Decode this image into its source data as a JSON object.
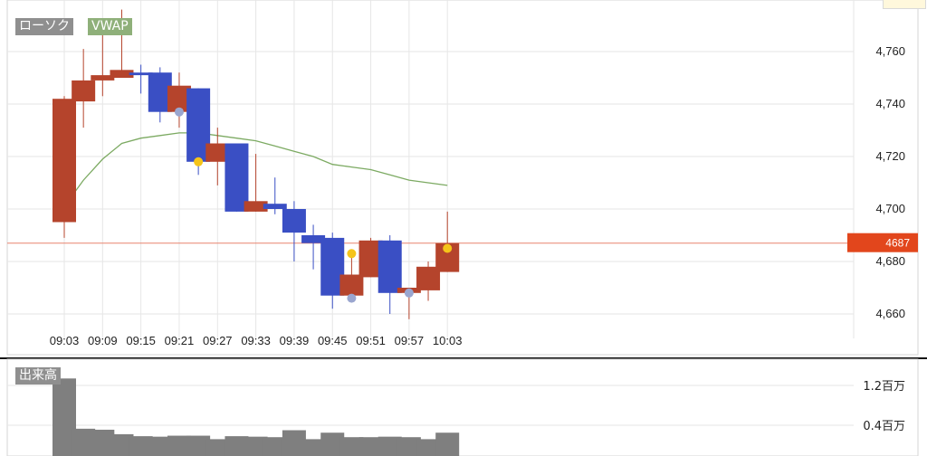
{
  "legend": {
    "candle_label": "ローソク",
    "vwap_label": "VWAP"
  },
  "volume_panel": {
    "label": "出来高",
    "ticks": [
      "1.2百万",
      "0.4百万"
    ]
  },
  "price_label": "4687",
  "colors": {
    "up": "#b5442c",
    "down": "#3a4fc4",
    "vwap": "#7caa62",
    "price_line": "#e8836f",
    "price_label_bg": "#e2461c",
    "volume": "#7f7f7f",
    "marker_yellow": "#f5c41a",
    "marker_gray": "#9aa6cf",
    "legend_bg": "#8f8f8f",
    "vwap_legend_bg": "#8fb07a"
  },
  "chart_data": [
    {
      "type": "candlestick",
      "x_tick_labels": [
        "09:03",
        "09:09",
        "09:15",
        "09:21",
        "09:27",
        "09:33",
        "09:39",
        "09:45",
        "09:51",
        "09:57",
        "10:03"
      ],
      "y_tick_labels": [
        "4,760",
        "4,740",
        "4,720",
        "4,700",
        "4,680",
        "4,660"
      ],
      "y_ticks": [
        4760,
        4740,
        4720,
        4700,
        4680,
        4660
      ],
      "ylim": [
        4656,
        4776
      ],
      "grid": true,
      "current_price": 4687,
      "candles": [
        {
          "t": "09:03",
          "o": 4695,
          "h": 4743,
          "l": 4689,
          "c": 4742
        },
        {
          "t": "09:06",
          "o": 4741,
          "h": 4761,
          "l": 4731,
          "c": 4749
        },
        {
          "t": "09:09",
          "o": 4749,
          "h": 4772,
          "l": 4743,
          "c": 4751
        },
        {
          "t": "09:12",
          "o": 4750,
          "h": 4776,
          "l": 4750,
          "c": 4753
        },
        {
          "t": "09:15",
          "o": 4752,
          "h": 4755,
          "l": 4744,
          "c": 4751
        },
        {
          "t": "09:18",
          "o": 4752,
          "h": 4754,
          "l": 4733,
          "c": 4737
        },
        {
          "t": "09:21",
          "o": 4737,
          "h": 4752,
          "l": 4731,
          "c": 4747
        },
        {
          "t": "09:24",
          "o": 4746,
          "h": 4746,
          "l": 4713,
          "c": 4718
        },
        {
          "t": "09:27",
          "o": 4718,
          "h": 4731,
          "l": 4709,
          "c": 4725
        },
        {
          "t": "09:30",
          "o": 4725,
          "h": 4725,
          "l": 4699,
          "c": 4699
        },
        {
          "t": "09:33",
          "o": 4699,
          "h": 4721,
          "l": 4699,
          "c": 4703
        },
        {
          "t": "09:36",
          "o": 4702,
          "h": 4712,
          "l": 4698,
          "c": 4700
        },
        {
          "t": "09:39",
          "o": 4700,
          "h": 4703,
          "l": 4680,
          "c": 4691
        },
        {
          "t": "09:42",
          "o": 4690,
          "h": 4694,
          "l": 4677,
          "c": 4687
        },
        {
          "t": "09:45",
          "o": 4689,
          "h": 4691,
          "l": 4662,
          "c": 4667
        },
        {
          "t": "09:48",
          "o": 4667,
          "h": 4682,
          "l": 4666,
          "c": 4675
        },
        {
          "t": "09:51",
          "o": 4674,
          "h": 4689,
          "l": 4674,
          "c": 4688
        },
        {
          "t": "09:54",
          "o": 4688,
          "h": 4690,
          "l": 4660,
          "c": 4668
        },
        {
          "t": "09:57",
          "o": 4668,
          "h": 4669,
          "l": 4658,
          "c": 4670
        },
        {
          "t": "10:00",
          "o": 4669,
          "h": 4680,
          "l": 4665,
          "c": 4678
        },
        {
          "t": "10:03",
          "o": 4676,
          "h": 4699,
          "l": 4676,
          "c": 4687
        }
      ],
      "vwap": [
        4701,
        4711,
        4719,
        4725,
        4727,
        4728,
        4729,
        4729,
        4728,
        4727,
        4726,
        4724,
        4722,
        4720,
        4717,
        4716,
        4715,
        4713,
        4711,
        4710,
        4709
      ],
      "markers": [
        {
          "t": "09:21",
          "price": 4737,
          "color": "gray"
        },
        {
          "t": "09:24",
          "price": 4718,
          "color": "yellow"
        },
        {
          "t": "09:48",
          "price": 4683,
          "color": "yellow"
        },
        {
          "t": "09:48",
          "price": 4666,
          "color": "gray"
        },
        {
          "t": "09:57",
          "price": 4668,
          "color": "gray"
        },
        {
          "t": "10:03",
          "price": 4685,
          "color": "yellow"
        }
      ]
    },
    {
      "type": "bar",
      "title": "出来高",
      "y_tick_labels": [
        "1.2百万",
        "0.4百万"
      ],
      "values": [
        1.34,
        0.33,
        0.31,
        0.22,
        0.18,
        0.17,
        0.19,
        0.19,
        0.12,
        0.18,
        0.17,
        0.16,
        0.3,
        0.12,
        0.25,
        0.16,
        0.16,
        0.17,
        0.16,
        0.12,
        0.25
      ]
    }
  ]
}
